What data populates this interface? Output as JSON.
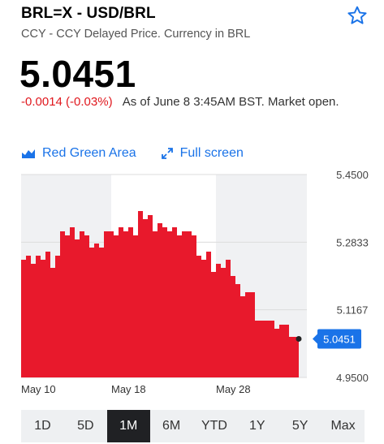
{
  "header": {
    "ticker": "BRL=X - USD/BRL",
    "subtitle": "CCY - CCY Delayed Price. Currency in BRL"
  },
  "quote": {
    "price": "5.0451",
    "change": "-0.0014 (-0.03%)",
    "as_of": "As of June 8 3:45AM BST. Market open."
  },
  "toolbar": {
    "chart_type_label": "Red Green Area",
    "fullscreen_label": "Full screen"
  },
  "colors": {
    "area": "#e8192c",
    "negative": "#e0181e",
    "accent": "#1a73e8"
  },
  "chart_data": {
    "type": "area",
    "x_labels": [
      "May 10",
      "May 18",
      "May 28"
    ],
    "y_ticks": [
      "5.4500",
      "5.2833",
      "5.1167",
      "4.9500"
    ],
    "ylim": [
      4.95,
      5.45
    ],
    "current_value_label": "5.0451",
    "values": [
      5.24,
      5.25,
      5.23,
      5.25,
      5.24,
      5.26,
      5.22,
      5.25,
      5.31,
      5.3,
      5.32,
      5.29,
      5.31,
      5.3,
      5.27,
      5.28,
      5.27,
      5.31,
      5.31,
      5.3,
      5.32,
      5.31,
      5.32,
      5.3,
      5.36,
      5.34,
      5.35,
      5.31,
      5.33,
      5.32,
      5.31,
      5.32,
      5.3,
      5.31,
      5.31,
      5.3,
      5.25,
      5.24,
      5.26,
      5.21,
      5.23,
      5.22,
      5.24,
      5.2,
      5.18,
      5.15,
      5.16,
      5.16,
      5.09,
      5.09,
      5.09,
      5.09,
      5.07,
      5.08,
      5.08,
      5.05,
      5.05,
      5.0451
    ],
    "grid": true
  },
  "range_tabs": {
    "items": [
      "1D",
      "5D",
      "1M",
      "6M",
      "YTD",
      "1Y",
      "5Y",
      "Max"
    ],
    "active": "1M"
  }
}
